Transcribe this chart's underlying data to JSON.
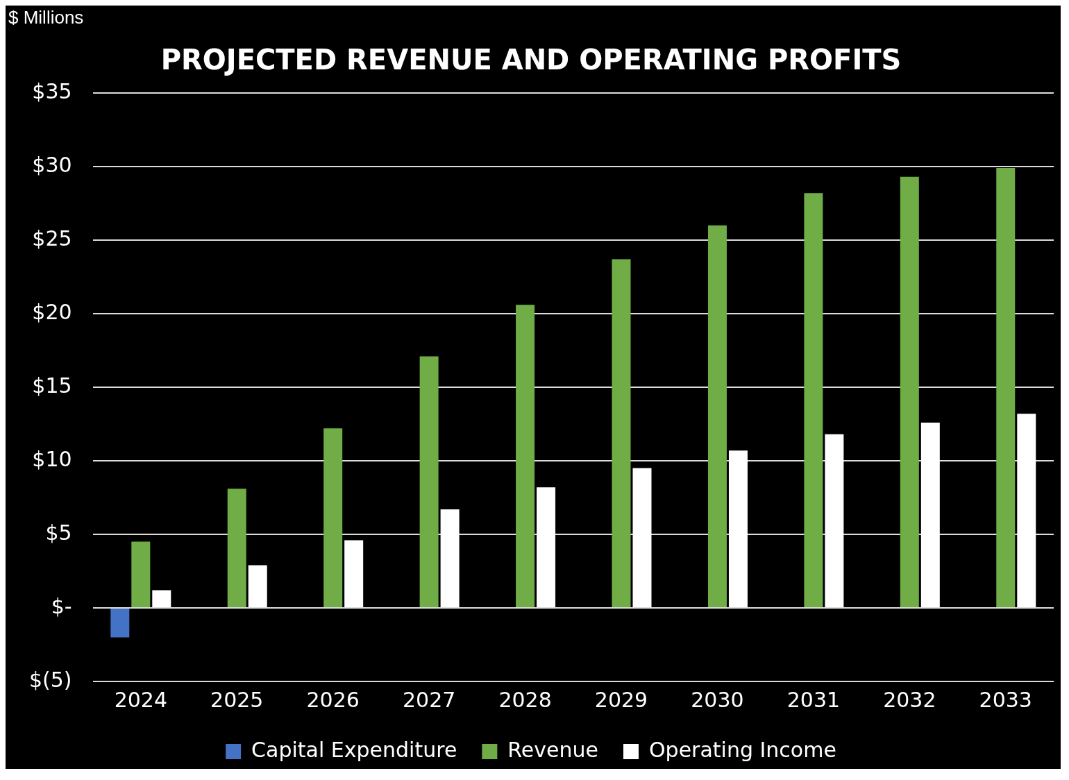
{
  "chart_data": {
    "type": "bar",
    "title": "PROJECTED REVENUE AND OPERATING PROFITS",
    "ylabel": "$ Millions",
    "categories": [
      "2024",
      "2025",
      "2026",
      "2027",
      "2028",
      "2029",
      "2030",
      "2031",
      "2032",
      "2033"
    ],
    "series": [
      {
        "name": "Capital Expenditure",
        "color": "#4472c4",
        "values": [
          -2.0,
          null,
          null,
          null,
          null,
          null,
          null,
          null,
          null,
          null
        ]
      },
      {
        "name": "Revenue",
        "color": "#70ad47",
        "values": [
          4.5,
          8.1,
          12.2,
          17.1,
          20.6,
          23.7,
          26.0,
          28.2,
          29.3,
          29.9
        ]
      },
      {
        "name": "Operating Income",
        "color": "#ffffff",
        "values": [
          1.2,
          2.9,
          4.6,
          6.7,
          8.2,
          9.5,
          10.7,
          11.8,
          12.6,
          13.2
        ]
      }
    ],
    "ylim": [
      -5,
      35
    ],
    "yticks": [
      {
        "value": -5,
        "label": "$(5)"
      },
      {
        "value": 0,
        "label": "$-"
      },
      {
        "value": 5,
        "label": "$5"
      },
      {
        "value": 10,
        "label": "$10"
      },
      {
        "value": 15,
        "label": "$15"
      },
      {
        "value": 20,
        "label": "$20"
      },
      {
        "value": 25,
        "label": "$25"
      },
      {
        "value": 30,
        "label": "$30"
      },
      {
        "value": 35,
        "label": "$35"
      }
    ],
    "grid": "y",
    "legend": "bottom"
  }
}
